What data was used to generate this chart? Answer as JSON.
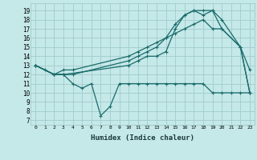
{
  "background_color": "#c5e8e8",
  "grid_color": "#a0cccc",
  "line_color": "#1a6b6b",
  "xlabel": "Humidex (Indice chaleur)",
  "xlim": [
    -0.5,
    23.5
  ],
  "ylim": [
    6.5,
    19.8
  ],
  "yticks": [
    7,
    8,
    9,
    10,
    11,
    12,
    13,
    14,
    15,
    16,
    17,
    18,
    19
  ],
  "xticks": [
    0,
    1,
    2,
    3,
    4,
    5,
    6,
    7,
    8,
    9,
    10,
    11,
    12,
    13,
    14,
    15,
    16,
    17,
    18,
    19,
    20,
    21,
    22,
    23
  ],
  "xtick_labels": [
    "0",
    "1",
    "2",
    "3",
    "4",
    "5",
    "6",
    "7",
    "8",
    "9",
    "10",
    "11",
    "12",
    "13",
    "14",
    "15",
    "16",
    "17",
    "18",
    "19",
    "20",
    "21",
    "22",
    "23"
  ],
  "series": [
    {
      "x": [
        0,
        1,
        2,
        3,
        4,
        5,
        6,
        7,
        8,
        9,
        10,
        11,
        12,
        13,
        14,
        15,
        16,
        17,
        18,
        19,
        20,
        21,
        22,
        23
      ],
      "y": [
        13,
        12.5,
        12,
        12,
        11,
        10.5,
        11,
        7.5,
        8.5,
        11,
        11,
        11,
        11,
        11,
        11,
        11,
        11,
        11,
        11,
        10,
        10,
        10,
        10,
        10
      ]
    },
    {
      "x": [
        0,
        2,
        3,
        10,
        11,
        12,
        13,
        14,
        15,
        16,
        17,
        18,
        19,
        20,
        22,
        23
      ],
      "y": [
        13,
        12,
        12,
        13,
        13.5,
        14,
        14,
        14.5,
        17,
        18.5,
        19,
        19,
        19,
        18,
        15,
        10
      ]
    },
    {
      "x": [
        0,
        2,
        3,
        4,
        10,
        11,
        12,
        13,
        14,
        15,
        16,
        17,
        18,
        19,
        20,
        22,
        23
      ],
      "y": [
        13,
        12,
        12,
        12,
        13.5,
        14,
        14.5,
        15,
        16,
        17.5,
        18.5,
        19,
        18.5,
        19,
        17,
        15,
        12.5
      ]
    },
    {
      "x": [
        0,
        2,
        3,
        4,
        10,
        11,
        12,
        13,
        14,
        15,
        16,
        17,
        18,
        19,
        20,
        22,
        23
      ],
      "y": [
        13,
        12,
        12.5,
        12.5,
        14,
        14.5,
        15,
        15.5,
        16,
        16.5,
        17,
        17.5,
        18,
        17,
        17,
        15,
        10
      ]
    }
  ]
}
